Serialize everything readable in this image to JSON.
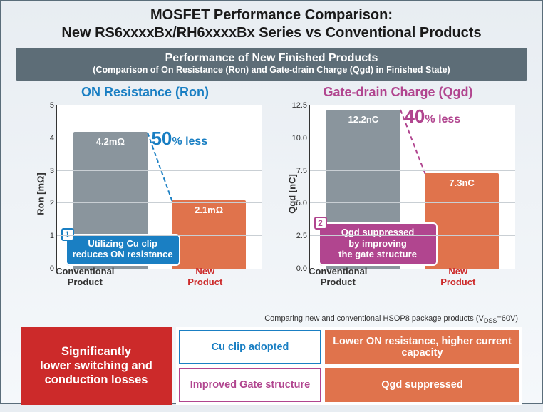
{
  "title": {
    "line1": "MOSFET Performance Comparison:",
    "line2": "New RS6xxxxBx/RH6xxxxBx Series vs Conventional Products"
  },
  "banner": {
    "main": "Performance of New Finished Products",
    "sub": "(Comparison of On Resistance (Ron) and Gate-drain Charge (Qgd) in Finished State)"
  },
  "colors": {
    "conv_bar": "#8a959d",
    "new_bar": "#e0734c",
    "blue": "#1a7fc3",
    "magenta": "#b1458f",
    "red": "#cc2a2a",
    "orange": "#e0734c"
  },
  "chart_left": {
    "title": "ON Resistance (Ron)",
    "title_color": "#1a7fc3",
    "ylabel": "Ron [mΩ]",
    "ymax": 5,
    "ticks": [
      0,
      1,
      2,
      3,
      4,
      5
    ],
    "conv": {
      "value": 4.2,
      "label": "4.2mΩ",
      "xcat": "Conventional\nProduct"
    },
    "new": {
      "value": 2.1,
      "label": "2.1mΩ",
      "xcat": "New\nProduct",
      "xcat_color": "#cc2a2a"
    },
    "pct": {
      "big": "50",
      "pct": "%",
      "txt": " less",
      "color": "#1a7fc3"
    },
    "callout": {
      "num": "1",
      "text": "Utilizing Cu clip\nreduces ON resistance",
      "bg": "#1a7fc3"
    }
  },
  "chart_right": {
    "title": "Gate-drain Charge (Qgd)",
    "title_color": "#b1458f",
    "ylabel": "Qgd [nC]",
    "ymax": 12.5,
    "ticks": [
      0,
      2.5,
      5.0,
      7.5,
      10.0,
      12.5
    ],
    "conv": {
      "value": 12.2,
      "label": "12.2nC",
      "xcat": "Conventional\nProduct"
    },
    "new": {
      "value": 7.3,
      "label": "7.3nC",
      "xcat": "New\nProduct",
      "xcat_color": "#cc2a2a"
    },
    "pct": {
      "big": "40",
      "pct": "%",
      "txt": " less",
      "color": "#b1458f"
    },
    "callout": {
      "num": "2",
      "text": "Qgd suppressed\nby improving\nthe gate structure",
      "bg": "#b1458f"
    }
  },
  "footnote_a": "Comparing new and conventional HSOP8 package products (V",
  "footnote_b": "=60V)",
  "footnote_sub": "DSS",
  "bottom": {
    "red": "Significantly\nlower switching and\nconduction losses",
    "a1": {
      "text": "Cu clip adopted",
      "border": "#1a7fc3",
      "fg": "#1a7fc3",
      "bg": "#ffffff"
    },
    "a2": {
      "text": "Lower ON resistance, higher current capacity",
      "border": "#e0734c",
      "fg": "#ffffff",
      "bg": "#e0734c"
    },
    "b1": {
      "text": "Improved Gate structure",
      "border": "#b1458f",
      "fg": "#b1458f",
      "bg": "#ffffff"
    },
    "b2": {
      "text": "Qgd suppressed",
      "border": "#e0734c",
      "fg": "#ffffff",
      "bg": "#e0734c"
    }
  }
}
